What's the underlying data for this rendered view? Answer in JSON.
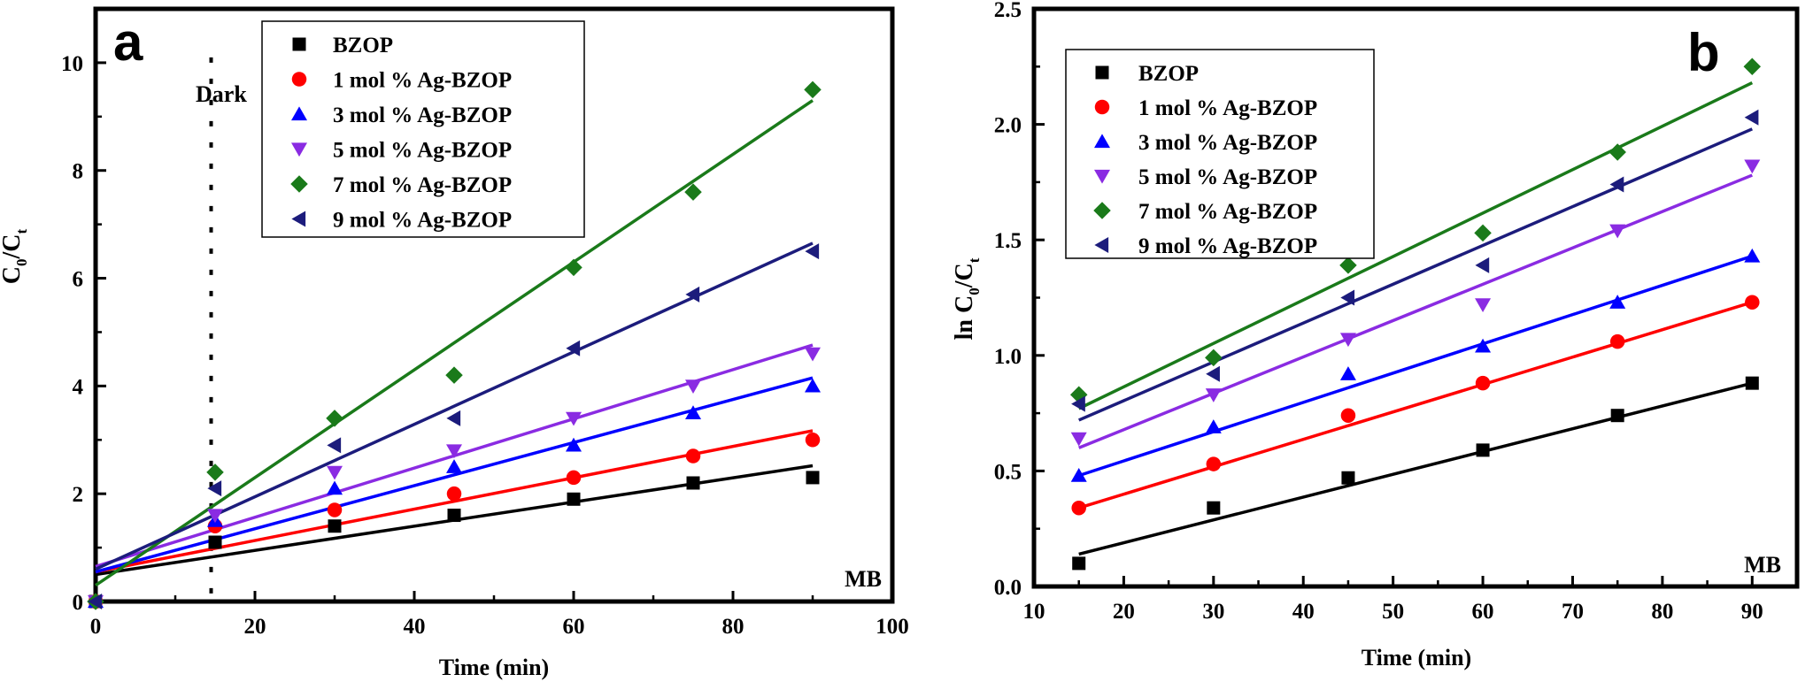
{
  "chart_data": [
    {
      "panel_label": "a",
      "type": "scatter",
      "title": "",
      "xlabel": "Time (min)",
      "ylabel": "C0/Ct",
      "ylabel_main": "C",
      "ylabel_sub1": "0",
      "ylabel_sep": "/C",
      "ylabel_sub2": "t",
      "xlim": [
        0,
        100
      ],
      "ylim": [
        0,
        11
      ],
      "xticks": [
        0,
        20,
        40,
        60,
        80,
        100
      ],
      "yticks": [
        0,
        2,
        4,
        6,
        8,
        10
      ],
      "annotation": "MB",
      "dark_label": "Dark",
      "dark_x": 14.5,
      "legend_position": "top-center",
      "x": [
        0,
        15,
        30,
        45,
        60,
        75,
        90
      ],
      "series": [
        {
          "name": "BZOP",
          "marker": "square",
          "color": "#000000",
          "values": [
            0,
            1.1,
            1.4,
            1.6,
            1.9,
            2.2,
            2.3
          ],
          "fit": [
            0.5,
            2.52
          ]
        },
        {
          "name": "1 mol % Ag-BZOP",
          "marker": "circle",
          "color": "#ff0000",
          "values": [
            0,
            1.4,
            1.7,
            2.0,
            2.3,
            2.7,
            3.0
          ],
          "fit": [
            0.55,
            3.17
          ]
        },
        {
          "name": "3 mol % Ag-BZOP",
          "marker": "triangle-up",
          "color": "#0000ff",
          "values": [
            0,
            1.5,
            2.1,
            2.5,
            2.9,
            3.5,
            4.0
          ],
          "fit": [
            0.55,
            4.15
          ]
        },
        {
          "name": "5 mol % Ag-BZOP",
          "marker": "triangle-down",
          "color": "#8a2be2",
          "values": [
            0,
            1.6,
            2.4,
            2.8,
            3.4,
            4.0,
            4.6
          ],
          "fit": [
            0.65,
            4.76
          ]
        },
        {
          "name": "7 mol % Ag-BZOP",
          "marker": "diamond",
          "color": "#1a7a1a",
          "values": [
            0,
            2.4,
            3.4,
            4.2,
            6.2,
            7.6,
            9.5
          ],
          "fit": [
            0.3,
            9.3
          ]
        },
        {
          "name": "9 mol % Ag-BZOP",
          "marker": "triangle-left",
          "color": "#1c1c7c",
          "values": [
            0,
            2.1,
            2.9,
            3.4,
            4.7,
            5.7,
            6.5
          ],
          "fit": [
            0.6,
            6.65
          ]
        }
      ]
    },
    {
      "panel_label": "b",
      "type": "scatter",
      "title": "",
      "xlabel": "Time (min)",
      "ylabel": "ln C0/Ct",
      "ylabel_main": "ln C",
      "ylabel_sub1": "0",
      "ylabel_sep": "/C",
      "ylabel_sub2": "t",
      "xlim": [
        10,
        95
      ],
      "ylim": [
        0,
        2.5
      ],
      "xticks": [
        10,
        20,
        30,
        40,
        50,
        60,
        70,
        80,
        90
      ],
      "yticks": [
        0.0,
        0.5,
        1.0,
        1.5,
        2.0,
        2.5
      ],
      "ytick_labels": [
        "0.0",
        "0.5",
        "1.0",
        "1.5",
        "2.0",
        "2.5"
      ],
      "annotation": "MB",
      "legend_position": "top-left",
      "x": [
        15,
        30,
        45,
        60,
        75,
        90
      ],
      "series": [
        {
          "name": "BZOP",
          "marker": "square",
          "color": "#000000",
          "values": [
            0.1,
            0.34,
            0.47,
            0.59,
            0.74,
            0.88
          ],
          "fit": [
            0.14,
            0.88
          ]
        },
        {
          "name": "1 mol % Ag-BZOP",
          "marker": "circle",
          "color": "#ff0000",
          "values": [
            0.34,
            0.53,
            0.74,
            0.88,
            1.06,
            1.23
          ],
          "fit": [
            0.34,
            1.23
          ]
        },
        {
          "name": "3 mol % Ag-BZOP",
          "marker": "triangle-up",
          "color": "#0000ff",
          "values": [
            0.48,
            0.69,
            0.92,
            1.04,
            1.23,
            1.43
          ],
          "fit": [
            0.48,
            1.43
          ]
        },
        {
          "name": "5 mol % Ag-BZOP",
          "marker": "triangle-down",
          "color": "#8a2be2",
          "values": [
            0.64,
            0.83,
            1.07,
            1.22,
            1.54,
            1.82
          ],
          "fit": [
            0.6,
            1.78
          ]
        },
        {
          "name": "7 mol % Ag-BZOP",
          "marker": "diamond",
          "color": "#1a7a1a",
          "values": [
            0.83,
            0.99,
            1.39,
            1.53,
            1.88,
            2.25
          ],
          "fit": [
            0.77,
            2.18
          ]
        },
        {
          "name": "9 mol % Ag-BZOP",
          "marker": "triangle-left",
          "color": "#1c1c7c",
          "values": [
            0.79,
            0.92,
            1.25,
            1.39,
            1.74,
            2.03
          ],
          "fit": [
            0.72,
            1.98
          ]
        }
      ]
    }
  ]
}
